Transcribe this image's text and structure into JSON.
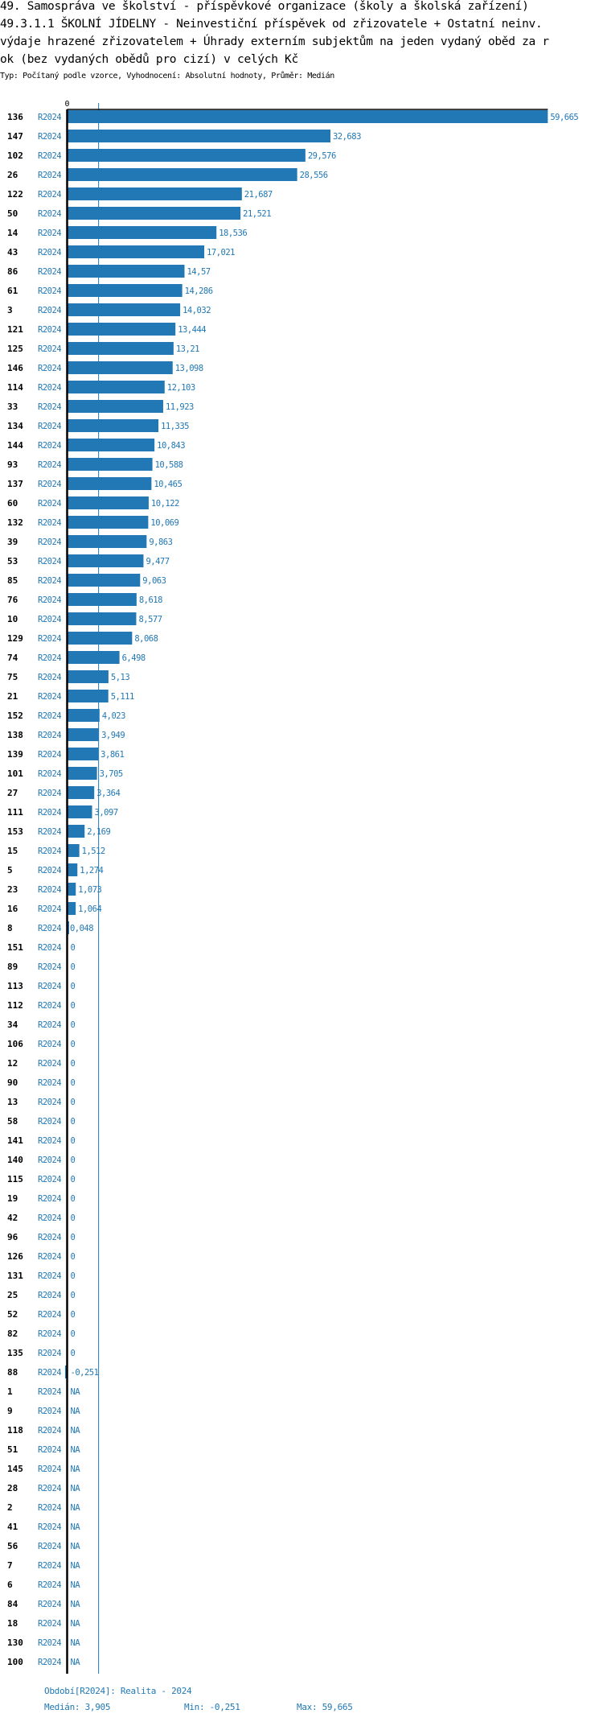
{
  "header": {
    "title_lines": [
      "49. Samospráva ve školství - příspěvkové organizace (školy a školská zařízení)",
      "49.3.1.1 ŠKOLNÍ JÍDELNY - Neinvestiční příspěvek od zřizovatele + Ostatní neinv.",
      "výdaje hrazené zřizovatelem + Úhrady externím subjektům na jeden vydaný oběd za r",
      "ok (bez vydaných obědů pro cizí) v celých Kč"
    ],
    "subtitle": "Typ: Počítaný podle vzorce, Vyhodnocení: Absolutní hodnoty, Průměr: Medián"
  },
  "colors": {
    "bar": "#2178b4",
    "axis": "#000000",
    "median_line": "#2178b4"
  },
  "chart_data": {
    "type": "bar",
    "orientation": "horizontal",
    "axis_zero_label": "0",
    "period_label": "R2024",
    "median": 3.905,
    "rows": [
      {
        "id": "136",
        "value": 59.665,
        "label": "59,665"
      },
      {
        "id": "147",
        "value": 32.683,
        "label": "32,683"
      },
      {
        "id": "102",
        "value": 29.576,
        "label": "29,576"
      },
      {
        "id": "26",
        "value": 28.556,
        "label": "28,556"
      },
      {
        "id": "122",
        "value": 21.687,
        "label": "21,687"
      },
      {
        "id": "50",
        "value": 21.521,
        "label": "21,521"
      },
      {
        "id": "14",
        "value": 18.536,
        "label": "18,536"
      },
      {
        "id": "43",
        "value": 17.021,
        "label": "17,021"
      },
      {
        "id": "86",
        "value": 14.57,
        "label": "14,57"
      },
      {
        "id": "61",
        "value": 14.286,
        "label": "14,286"
      },
      {
        "id": "3",
        "value": 14.032,
        "label": "14,032"
      },
      {
        "id": "121",
        "value": 13.444,
        "label": "13,444"
      },
      {
        "id": "125",
        "value": 13.21,
        "label": "13,21"
      },
      {
        "id": "146",
        "value": 13.098,
        "label": "13,098"
      },
      {
        "id": "114",
        "value": 12.103,
        "label": "12,103"
      },
      {
        "id": "33",
        "value": 11.923,
        "label": "11,923"
      },
      {
        "id": "134",
        "value": 11.335,
        "label": "11,335"
      },
      {
        "id": "144",
        "value": 10.843,
        "label": "10,843"
      },
      {
        "id": "93",
        "value": 10.588,
        "label": "10,588"
      },
      {
        "id": "137",
        "value": 10.465,
        "label": "10,465"
      },
      {
        "id": "60",
        "value": 10.122,
        "label": "10,122"
      },
      {
        "id": "132",
        "value": 10.069,
        "label": "10,069"
      },
      {
        "id": "39",
        "value": 9.863,
        "label": "9,863"
      },
      {
        "id": "53",
        "value": 9.477,
        "label": "9,477"
      },
      {
        "id": "85",
        "value": 9.063,
        "label": "9,063"
      },
      {
        "id": "76",
        "value": 8.618,
        "label": "8,618"
      },
      {
        "id": "10",
        "value": 8.577,
        "label": "8,577"
      },
      {
        "id": "129",
        "value": 8.068,
        "label": "8,068"
      },
      {
        "id": "74",
        "value": 6.498,
        "label": "6,498"
      },
      {
        "id": "75",
        "value": 5.13,
        "label": "5,13"
      },
      {
        "id": "21",
        "value": 5.111,
        "label": "5,111"
      },
      {
        "id": "152",
        "value": 4.023,
        "label": "4,023"
      },
      {
        "id": "138",
        "value": 3.949,
        "label": "3,949"
      },
      {
        "id": "139",
        "value": 3.861,
        "label": "3,861"
      },
      {
        "id": "101",
        "value": 3.705,
        "label": "3,705"
      },
      {
        "id": "27",
        "value": 3.364,
        "label": "3,364"
      },
      {
        "id": "111",
        "value": 3.097,
        "label": "3,097"
      },
      {
        "id": "153",
        "value": 2.169,
        "label": "2,169"
      },
      {
        "id": "15",
        "value": 1.512,
        "label": "1,512"
      },
      {
        "id": "5",
        "value": 1.274,
        "label": "1,274"
      },
      {
        "id": "23",
        "value": 1.073,
        "label": "1,073"
      },
      {
        "id": "16",
        "value": 1.064,
        "label": "1,064"
      },
      {
        "id": "8",
        "value": 0.048,
        "label": "0,048"
      },
      {
        "id": "151",
        "value": 0,
        "label": "0"
      },
      {
        "id": "89",
        "value": 0,
        "label": "0"
      },
      {
        "id": "113",
        "value": 0,
        "label": "0"
      },
      {
        "id": "112",
        "value": 0,
        "label": "0"
      },
      {
        "id": "34",
        "value": 0,
        "label": "0"
      },
      {
        "id": "106",
        "value": 0,
        "label": "0"
      },
      {
        "id": "12",
        "value": 0,
        "label": "0"
      },
      {
        "id": "90",
        "value": 0,
        "label": "0"
      },
      {
        "id": "13",
        "value": 0,
        "label": "0"
      },
      {
        "id": "58",
        "value": 0,
        "label": "0"
      },
      {
        "id": "141",
        "value": 0,
        "label": "0"
      },
      {
        "id": "140",
        "value": 0,
        "label": "0"
      },
      {
        "id": "115",
        "value": 0,
        "label": "0"
      },
      {
        "id": "19",
        "value": 0,
        "label": "0"
      },
      {
        "id": "42",
        "value": 0,
        "label": "0"
      },
      {
        "id": "96",
        "value": 0,
        "label": "0"
      },
      {
        "id": "126",
        "value": 0,
        "label": "0"
      },
      {
        "id": "131",
        "value": 0,
        "label": "0"
      },
      {
        "id": "25",
        "value": 0,
        "label": "0"
      },
      {
        "id": "52",
        "value": 0,
        "label": "0"
      },
      {
        "id": "82",
        "value": 0,
        "label": "0"
      },
      {
        "id": "135",
        "value": 0,
        "label": "0"
      },
      {
        "id": "88",
        "value": -0.251,
        "label": "-0,251"
      },
      {
        "id": "1",
        "value": null,
        "label": "NA"
      },
      {
        "id": "9",
        "value": null,
        "label": "NA"
      },
      {
        "id": "118",
        "value": null,
        "label": "NA"
      },
      {
        "id": "51",
        "value": null,
        "label": "NA"
      },
      {
        "id": "145",
        "value": null,
        "label": "NA"
      },
      {
        "id": "28",
        "value": null,
        "label": "NA"
      },
      {
        "id": "2",
        "value": null,
        "label": "NA"
      },
      {
        "id": "41",
        "value": null,
        "label": "NA"
      },
      {
        "id": "56",
        "value": null,
        "label": "NA"
      },
      {
        "id": "7",
        "value": null,
        "label": "NA"
      },
      {
        "id": "6",
        "value": null,
        "label": "NA"
      },
      {
        "id": "84",
        "value": null,
        "label": "NA"
      },
      {
        "id": "18",
        "value": null,
        "label": "NA"
      },
      {
        "id": "130",
        "value": null,
        "label": "NA"
      },
      {
        "id": "100",
        "value": null,
        "label": "NA"
      }
    ]
  },
  "footer": {
    "period": "Období[R2024]: Realita - 2024",
    "median": "Medián: 3,905",
    "min": "Min: -0,251",
    "max": "Max: 59,665"
  }
}
